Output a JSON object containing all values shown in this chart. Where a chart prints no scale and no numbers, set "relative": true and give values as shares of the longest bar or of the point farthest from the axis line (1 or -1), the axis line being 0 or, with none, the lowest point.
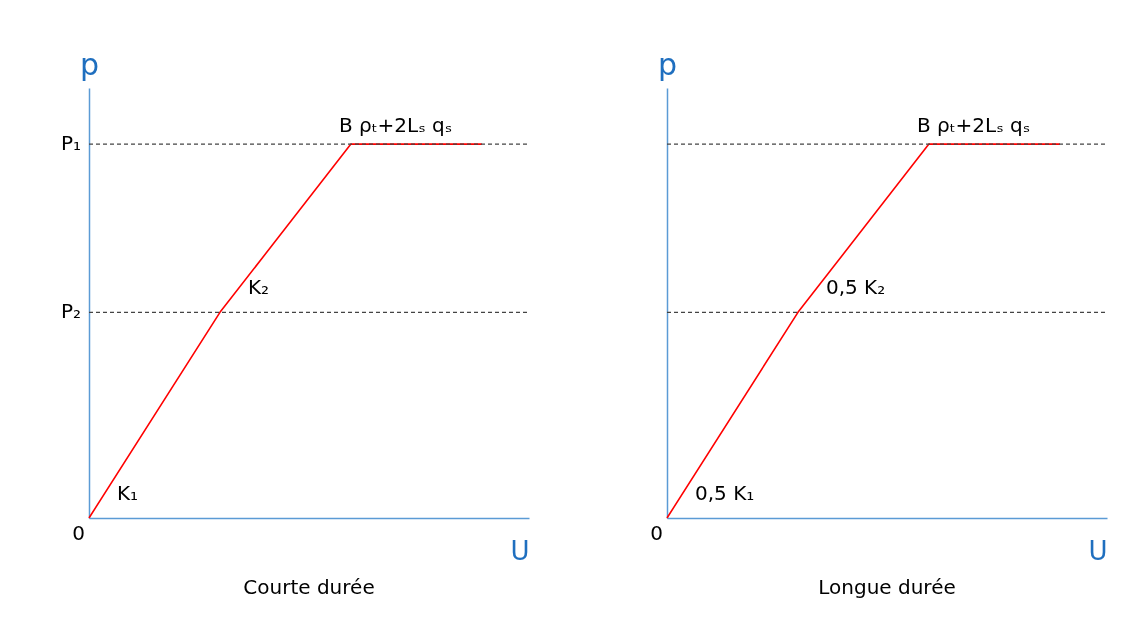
{
  "chart_data": [
    {
      "type": "line",
      "relative": true,
      "title": "Courte durée",
      "xlabel": "U",
      "ylabel": "p",
      "categories": [
        null,
        null,
        null,
        null
      ],
      "series": [
        {
          "color": "#ff0000",
          "values": [
            0,
            0.55,
            1,
            1
          ]
        }
      ],
      "ref_lines": [
        {
          "axis": "y",
          "value": 1,
          "label": "P₁",
          "line_style": "dashed",
          "color": "#444444"
        },
        {
          "axis": "y",
          "value": 0.55,
          "label": "P₂",
          "line_style": "dashed",
          "color": "#444444"
        }
      ],
      "annotations": [
        {
          "text": "B ρₜ+2Lₛ qₛ",
          "y": 1
        },
        "K₂",
        "K₁",
        "0"
      ]
    },
    {
      "type": "line",
      "relative": true,
      "title": "Longue durée",
      "xlabel": "U",
      "ylabel": "p",
      "categories": [
        null,
        null,
        null,
        null
      ],
      "series": [
        {
          "color": "#ff0000",
          "values": [
            0,
            0.55,
            1,
            1
          ]
        }
      ],
      "ref_lines": [
        {
          "axis": "y",
          "value": 1,
          "line_style": "dashed",
          "color": "#444444"
        },
        {
          "axis": "y",
          "value": 0.55,
          "line_style": "dashed",
          "color": "#444444"
        }
      ],
      "annotations": [
        {
          "text": "B ρₜ+2Lₛ qₛ",
          "y": 1
        },
        "0,5 K₂",
        "0,5 K₁",
        "0"
      ]
    }
  ]
}
